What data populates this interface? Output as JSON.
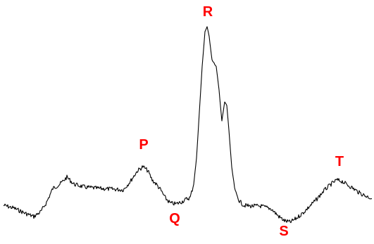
{
  "colors": {
    "trace": "#000000",
    "label": "#ff0000",
    "background": "#ffffff"
  },
  "labels": {
    "p": "P",
    "q": "Q",
    "r": "R",
    "s": "S",
    "t": "T"
  }
}
